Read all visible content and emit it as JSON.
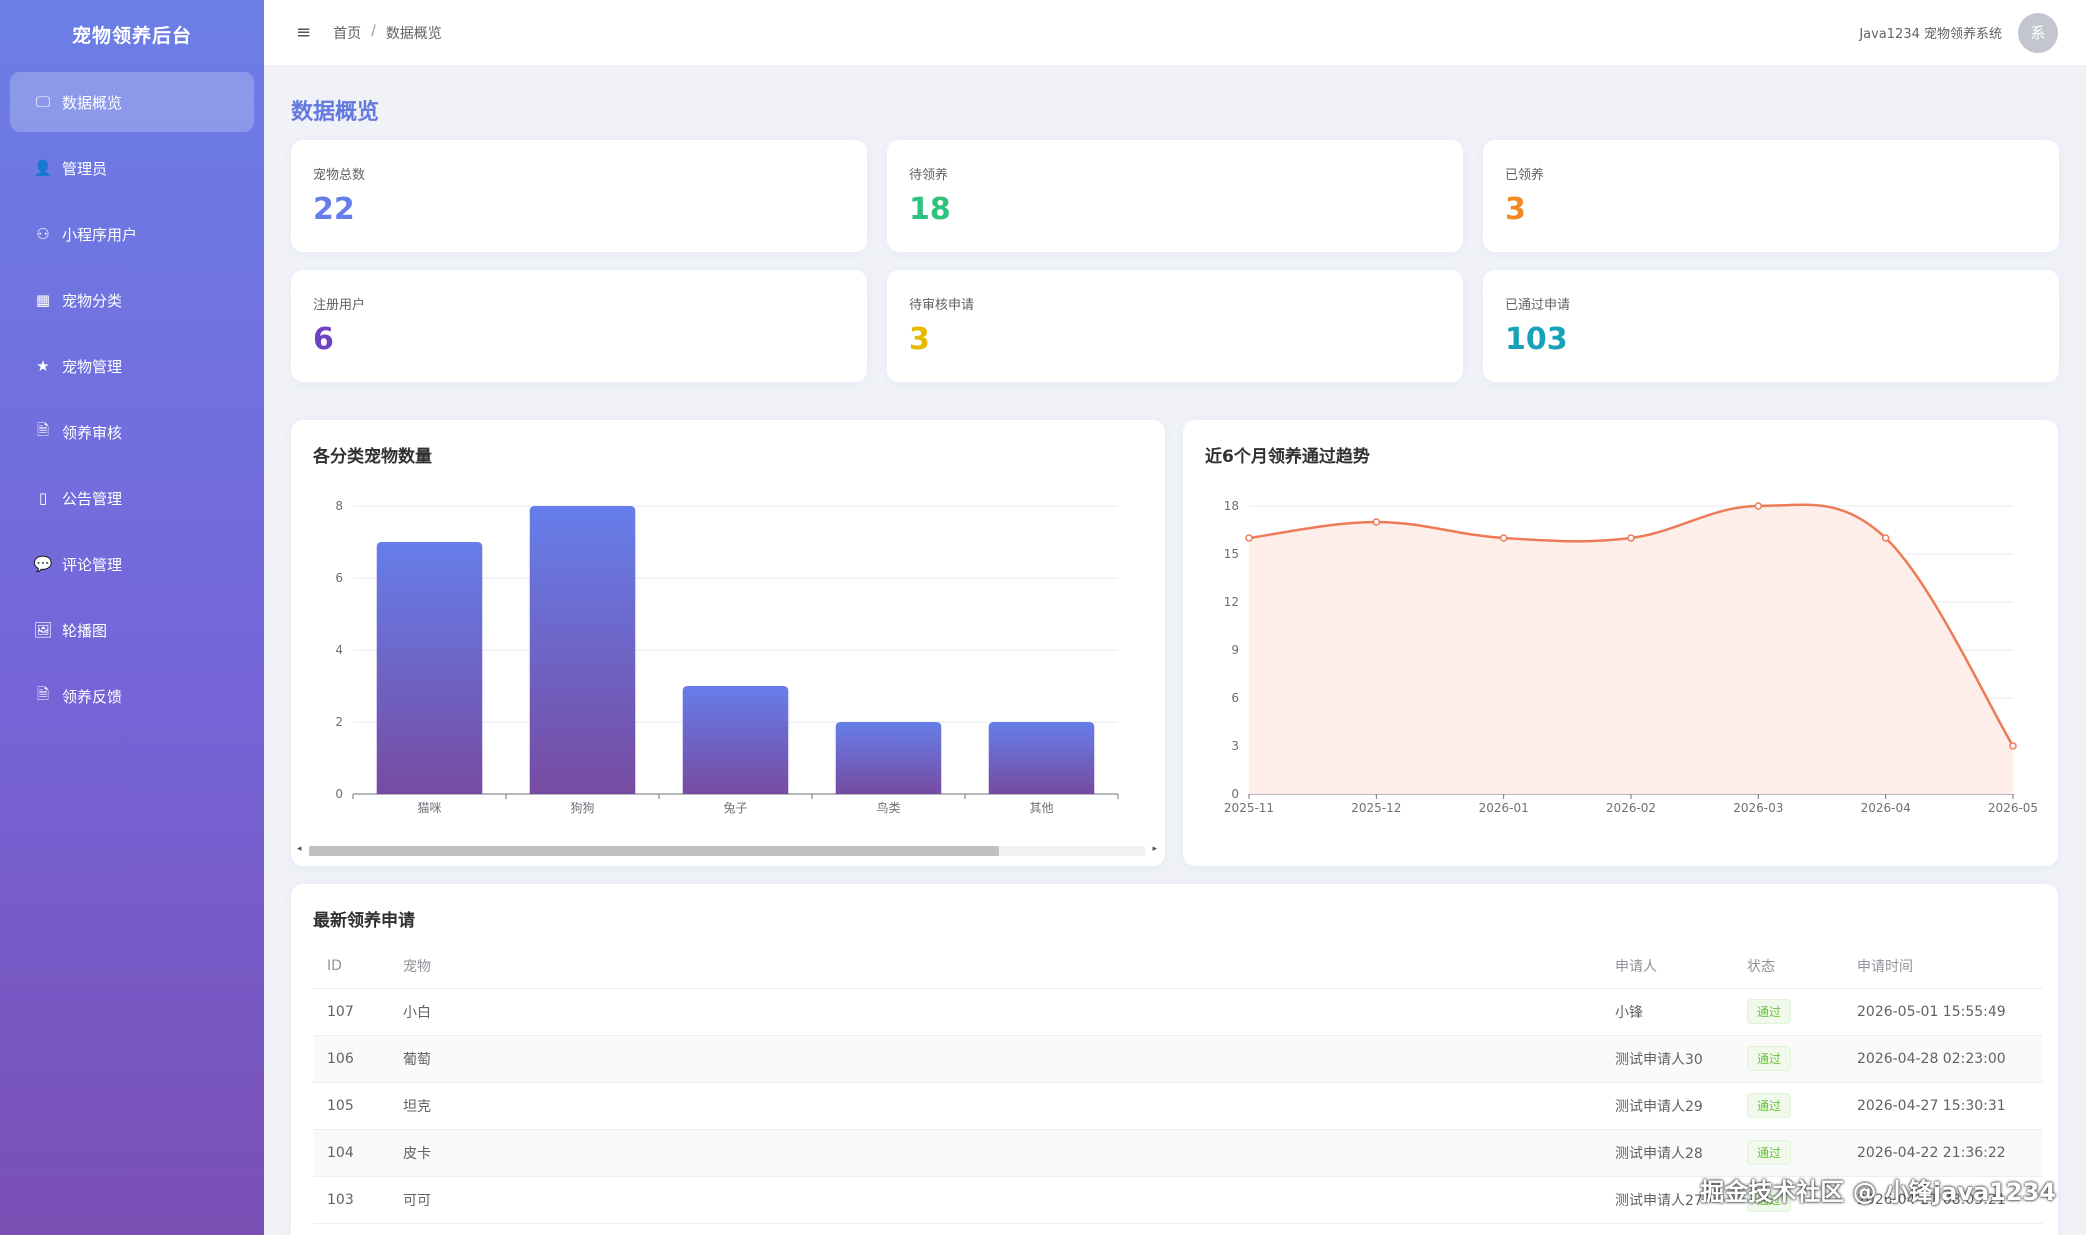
{
  "sidebar": {
    "brand": "宠物领养后台",
    "items": [
      {
        "label": "数据概览",
        "icon": "monitor-icon",
        "glyph": "🖵"
      },
      {
        "label": "管理员",
        "icon": "user-filled-icon",
        "glyph": "👤"
      },
      {
        "label": "小程序用户",
        "icon": "user-icon",
        "glyph": "⚇"
      },
      {
        "label": "宠物分类",
        "icon": "grid-icon",
        "glyph": "▦"
      },
      {
        "label": "宠物管理",
        "icon": "star-icon",
        "glyph": "★"
      },
      {
        "label": "领养审核",
        "icon": "document-icon",
        "glyph": "🗎"
      },
      {
        "label": "公告管理",
        "icon": "notebook-icon",
        "glyph": "▯"
      },
      {
        "label": "评论管理",
        "icon": "chat-icon",
        "glyph": "💬"
      },
      {
        "label": "轮播图",
        "icon": "picture-icon",
        "glyph": "🖼"
      },
      {
        "label": "领养反馈",
        "icon": "document-icon",
        "glyph": "🗎"
      }
    ]
  },
  "header": {
    "breadcrumb": [
      "首页",
      "数据概览"
    ],
    "breadcrumb_sep": "/",
    "system_name": "Java1234 宠物领养系统",
    "avatar_text": "系"
  },
  "page_title": "数据概览",
  "stats": [
    {
      "label": "宠物总数",
      "value": "22",
      "color": "#667eea"
    },
    {
      "label": "待领养",
      "value": "18",
      "color": "#2ec27e"
    },
    {
      "label": "已领养",
      "value": "3",
      "color": "#f08a24"
    },
    {
      "label": "注册用户",
      "value": "6",
      "color": "#6f42c1"
    },
    {
      "label": "待审核申请",
      "value": "3",
      "color": "#e6b800"
    },
    {
      "label": "已通过申请",
      "value": "103",
      "color": "#17a2b8"
    }
  ],
  "chart_data": [
    {
      "type": "bar",
      "title": "各分类宠物数量",
      "categories": [
        "猫咪",
        "狗狗",
        "兔子",
        "鸟类",
        "其他"
      ],
      "values": [
        7,
        8,
        3,
        2,
        2
      ],
      "ylim": [
        0,
        8
      ],
      "yticks": [
        0,
        2,
        4,
        6,
        8
      ],
      "grid": true,
      "colors": [
        "#667eea",
        "#764ba2"
      ]
    },
    {
      "type": "area",
      "title": "近6个月领养通过趋势",
      "x": [
        "2025-11",
        "2025-12",
        "2026-01",
        "2026-02",
        "2026-03",
        "2026-04",
        "2026-05"
      ],
      "values": [
        16,
        17,
        16,
        16,
        18,
        16,
        3
      ],
      "ylim": [
        0,
        18
      ],
      "yticks": [
        0,
        3,
        6,
        9,
        12,
        15,
        18
      ],
      "grid": true,
      "colors": [
        "#ee7b58",
        "#fdeeea"
      ]
    }
  ],
  "recent": {
    "title": "最新领养申请",
    "columns": [
      "ID",
      "宠物",
      "申请人",
      "状态",
      "申请时间"
    ],
    "rows": [
      {
        "id": "107",
        "pet": "小白",
        "applicant": "小锋",
        "status": "通过",
        "time": "2026-05-01 15:55:49"
      },
      {
        "id": "106",
        "pet": "葡萄",
        "applicant": "测试申请人30",
        "status": "通过",
        "time": "2026-04-28 02:23:00"
      },
      {
        "id": "105",
        "pet": "坦克",
        "applicant": "测试申请人29",
        "status": "通过",
        "time": "2026-04-27 15:30:31"
      },
      {
        "id": "104",
        "pet": "皮卡",
        "applicant": "测试申请人28",
        "status": "通过",
        "time": "2026-04-22 21:36:22"
      },
      {
        "id": "103",
        "pet": "可可",
        "applicant": "测试申请人27",
        "status": "通过",
        "time": "2026-04-21 08:05:21"
      }
    ]
  },
  "watermark": "掘金技术社区 @ 小锋java1234"
}
